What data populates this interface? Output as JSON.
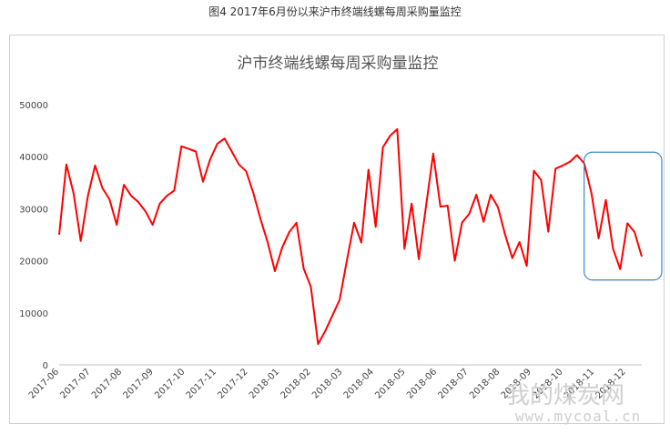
{
  "figure_caption": "图4  2017年6月份以来沪市终端线螺每周采购量监控",
  "watermark": {
    "cn": "我的煤炭网",
    "url": "www.mycoal.cn"
  },
  "colors": {
    "line": "#ff0000",
    "highlight_box": "#3a87c8",
    "axis": "#bfbfbf"
  },
  "chart_data": {
    "type": "line",
    "title": "沪市终端线螺每周采购量监控",
    "xlabel": "",
    "ylabel": "",
    "ylim": [
      0,
      50000
    ],
    "yticks": [
      0,
      10000,
      20000,
      30000,
      40000,
      50000
    ],
    "grid": false,
    "legend": "none",
    "x_tick_labels": [
      "2017-06",
      "2017-07",
      "2017-08",
      "2017-09",
      "2017-10",
      "2017-11",
      "2017-12",
      "2018-01",
      "2018-02",
      "2018-03",
      "2018-04",
      "2018-05",
      "2018-06",
      "2018-07",
      "2018-08",
      "2018-09",
      "2018-10",
      "2018-11",
      "2018-12"
    ],
    "series": [
      {
        "values": [
          25000,
          38500,
          33000,
          23800,
          32500,
          38300,
          34000,
          31800,
          26900,
          34600,
          32500,
          31300,
          29500,
          26900,
          31000,
          32500,
          33500,
          42000,
          41500,
          41000,
          35200,
          39500,
          42500,
          43500,
          41000,
          38500,
          37200,
          33000,
          28000,
          23500,
          18000,
          22500,
          25500,
          27300,
          18500,
          15000,
          4000,
          6500,
          9500,
          12500,
          20000,
          27300,
          23500,
          37500,
          26500,
          41800,
          44000,
          45300,
          22300,
          31000,
          20300,
          30500,
          40600,
          30400,
          30600,
          20000,
          27300,
          29000,
          32700,
          27500,
          32700,
          30300,
          25000,
          20500,
          23600,
          19000,
          37300,
          35500,
          25600,
          37700,
          38300,
          39000,
          40300,
          38700,
          33000,
          24300,
          31700,
          22300,
          18400,
          27200,
          25500,
          20800
        ]
      }
    ],
    "highlight_region": {
      "from_index": 74,
      "to_index": 81
    }
  }
}
